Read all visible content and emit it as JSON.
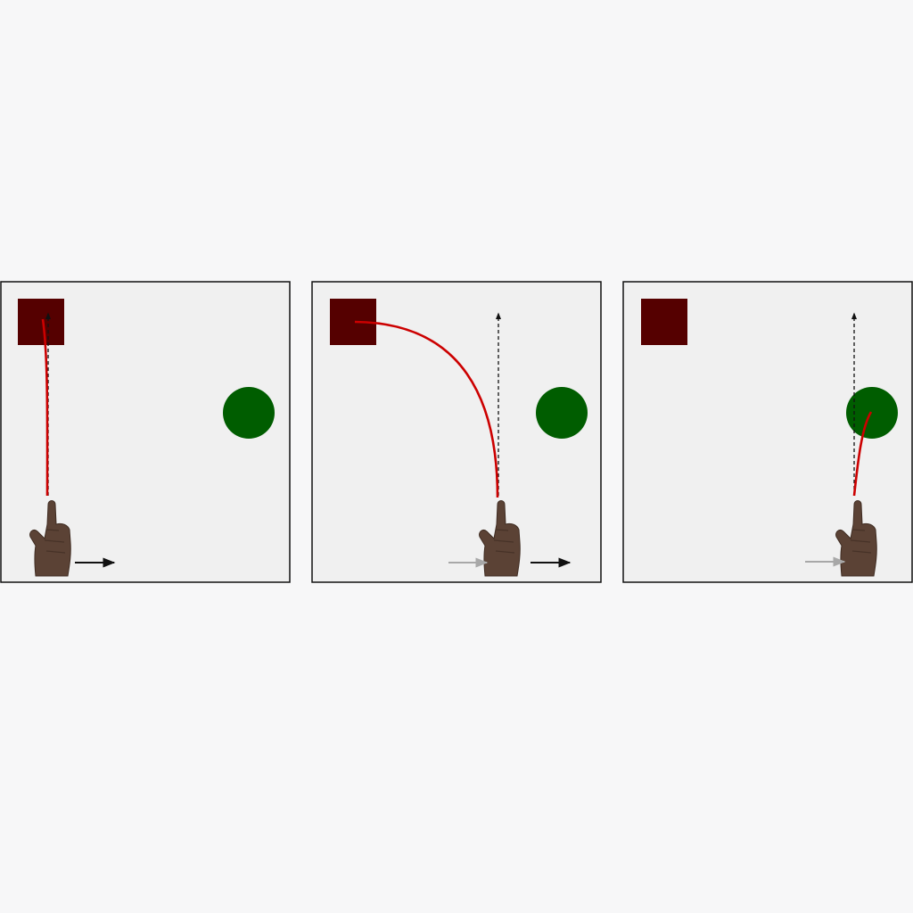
{
  "colors": {
    "page_background": "#f7f7f8",
    "panel_background": "#f0f0f0",
    "panel_border": "#111111",
    "obstacle_square": "#550000",
    "target_circle": "#005d00",
    "hand_path": "#cc0000",
    "straight_path": "#111111",
    "arrow_current": "#111111",
    "arrow_previous": "#a8a8a8",
    "hand_skin": "#5b4235",
    "hand_shadow": "#3f2c22"
  },
  "icons": {
    "hand": "pointing-hand-icon",
    "arrow": "right-arrow-icon"
  },
  "panels": [
    {
      "id": 1,
      "path_shape": "straight-up-to-square",
      "shows_previous_arrow": false,
      "shows_current_arrow": true
    },
    {
      "id": 2,
      "path_shape": "curve-to-square",
      "shows_previous_arrow": true,
      "shows_current_arrow": true
    },
    {
      "id": 3,
      "path_shape": "short-curve-to-circle",
      "shows_previous_arrow": true,
      "shows_current_arrow": false
    }
  ]
}
